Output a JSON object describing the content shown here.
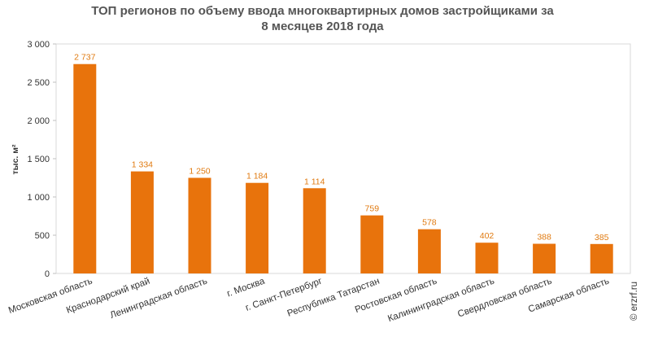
{
  "chart_data": {
    "type": "bar",
    "title_line1": "ТОП регионов по объему ввода многоквартирных домов застройщиками за",
    "title_line2": "8 месяцев 2018 года",
    "ylabel": "тыс. м²",
    "xlabel": "",
    "ylim": [
      0,
      3000
    ],
    "yticks": [
      0,
      500,
      1000,
      1500,
      2000,
      2500,
      3000
    ],
    "ytick_labels": [
      "0",
      "500",
      "1 000",
      "1 500",
      "2 000",
      "2 500",
      "3 000"
    ],
    "categories": [
      "Московская область",
      "Краснодарский край",
      "Ленинградская область",
      "г. Москва",
      "г. Санкт-Петербург",
      "Республика Татарстан",
      "Ростовская область",
      "Калининградская область",
      "Свердловская область",
      "Самарская область"
    ],
    "values": [
      2737,
      1334,
      1250,
      1184,
      1114,
      759,
      578,
      402,
      388,
      385
    ],
    "value_labels": [
      "2 737",
      "1 334",
      "1 250",
      "1 184",
      "1 114",
      "759",
      "578",
      "402",
      "388",
      "385"
    ],
    "bar_color": "#e8730c",
    "label_color": "#e07a10",
    "grid": false,
    "legend": "none"
  },
  "watermark": "© erzrf.ru"
}
